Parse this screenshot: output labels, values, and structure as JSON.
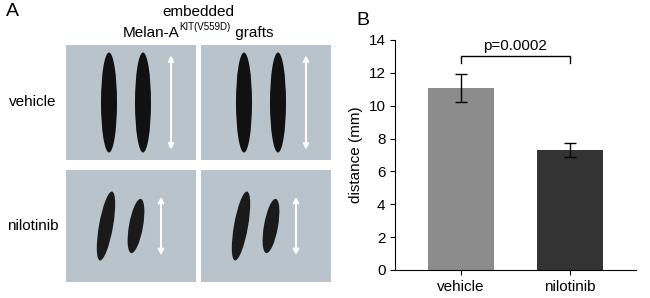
{
  "panel_a": {
    "label": "A",
    "title_line1": "embedded",
    "title_line2": {
      "text": "Melan-A",
      "superscript": "KIT(V559D)",
      "after": "grafts"
    },
    "rows": [
      "vehicle",
      "nilotinib"
    ]
  },
  "chart_data": {
    "type": "bar",
    "title": "B",
    "categories": [
      "vehicle",
      "nilotinib"
    ],
    "values": [
      11.1,
      7.3
    ],
    "errors": [
      0.85,
      0.4
    ],
    "colors": [
      "#8c8c8c",
      "#333333"
    ],
    "y_label": "distance (mm)",
    "ylim": [
      0,
      14
    ],
    "yticks": [
      0,
      2,
      4,
      6,
      8,
      10,
      12,
      14
    ],
    "annotations": [
      {
        "text": "p=0.0002",
        "between": [
          "vehicle",
          "nilotinib"
        ]
      }
    ]
  }
}
